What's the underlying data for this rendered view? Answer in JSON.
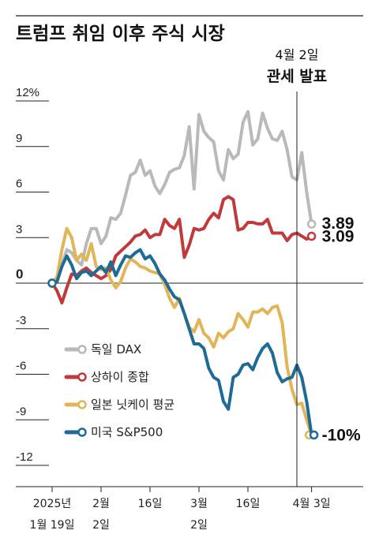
{
  "title": "트럼프 취임 이후 주식 시장",
  "annotation": {
    "line1": "4월 2일",
    "line2": "관세 발표"
  },
  "chart_data": {
    "type": "line",
    "title": "트럼프 취임 이후 주식 시장",
    "ylim": [
      -12,
      12
    ],
    "yticks": [
      "12%",
      "9",
      "6",
      "3",
      "0",
      "-3",
      "-6",
      "-9",
      "-12"
    ],
    "ytick_values": [
      12,
      9,
      6,
      3,
      0,
      -3,
      -6,
      -9,
      -12
    ],
    "xticks": [
      {
        "x": 0,
        "line1": "2025년",
        "line2": "1월 19일"
      },
      {
        "x": 10,
        "line1": "2월",
        "line2": "2일"
      },
      {
        "x": 20,
        "line1": "16일",
        "line2": ""
      },
      {
        "x": 30,
        "line1": "3월",
        "line2": "2일"
      },
      {
        "x": 40,
        "line1": "16일",
        "line2": ""
      },
      {
        "x": 53,
        "line1": "4월 3일",
        "line2": ""
      }
    ],
    "event_x": 50,
    "grid": false,
    "legend_position": "lower-left",
    "series": [
      {
        "name": "독일 DAX",
        "color": "#b9b9b9",
        "end_label": "3.89",
        "points": [
          [
            0,
            0
          ],
          [
            1,
            0.2
          ],
          [
            2,
            1.2
          ],
          [
            3,
            2.2
          ],
          [
            4,
            2.0
          ],
          [
            5,
            1.5
          ],
          [
            6,
            1.2
          ],
          [
            7,
            2.6
          ],
          [
            8,
            3.6
          ],
          [
            9,
            3.6
          ],
          [
            10,
            2.6
          ],
          [
            11,
            3.1
          ],
          [
            12,
            4.3
          ],
          [
            13,
            4.2
          ],
          [
            14,
            4.6
          ],
          [
            15,
            5.8
          ],
          [
            16,
            7.1
          ],
          [
            17,
            7.3
          ],
          [
            18,
            8.1
          ],
          [
            19,
            7.1
          ],
          [
            20,
            7.4
          ],
          [
            21,
            6.4
          ],
          [
            22,
            5.9
          ],
          [
            23,
            6.5
          ],
          [
            24,
            7.3
          ],
          [
            25,
            7.5
          ],
          [
            26,
            7.6
          ],
          [
            27,
            8.4
          ],
          [
            28,
            10.3
          ],
          [
            29,
            6.2
          ],
          [
            30,
            11.1
          ],
          [
            31,
            10.0
          ],
          [
            32,
            9.6
          ],
          [
            33,
            9.3
          ],
          [
            34,
            7.4
          ],
          [
            35,
            6.8
          ],
          [
            36,
            8.8
          ],
          [
            37,
            8.2
          ],
          [
            38,
            8.5
          ],
          [
            39,
            10.6
          ],
          [
            40,
            11.3
          ],
          [
            41,
            9.1
          ],
          [
            42,
            9.5
          ],
          [
            43,
            11.2
          ],
          [
            44,
            10.2
          ],
          [
            45,
            9.5
          ],
          [
            46,
            9.4
          ],
          [
            47,
            10.0
          ],
          [
            48,
            8.8
          ],
          [
            49,
            7.0
          ],
          [
            50,
            6.8
          ],
          [
            51,
            8.6
          ],
          [
            52,
            6.0
          ],
          [
            53,
            3.89
          ]
        ]
      },
      {
        "name": "상하이 종합",
        "color": "#c0393b",
        "end_label": "3.09",
        "points": [
          [
            0,
            0
          ],
          [
            1,
            -0.5
          ],
          [
            2,
            -1.3
          ],
          [
            3,
            -0.3
          ],
          [
            4,
            0.6
          ],
          [
            5,
            0.5
          ],
          [
            6,
            0.8
          ],
          [
            7,
            1.0
          ],
          [
            8,
            0.7
          ],
          [
            9,
            0.5
          ],
          [
            10,
            0.3
          ],
          [
            11,
            0.5
          ],
          [
            12,
            0.9
          ],
          [
            13,
            1.8
          ],
          [
            14,
            2.1
          ],
          [
            15,
            2.4
          ],
          [
            16,
            2.7
          ],
          [
            17,
            3.1
          ],
          [
            18,
            3.2
          ],
          [
            19,
            3.5
          ],
          [
            20,
            3.0
          ],
          [
            21,
            3.2
          ],
          [
            22,
            3.2
          ],
          [
            23,
            4.2
          ],
          [
            24,
            3.8
          ],
          [
            25,
            3.6
          ],
          [
            26,
            4.2
          ],
          [
            27,
            1.7
          ],
          [
            28,
            2.5
          ],
          [
            29,
            3.6
          ],
          [
            30,
            3.5
          ],
          [
            31,
            3.6
          ],
          [
            32,
            4.2
          ],
          [
            33,
            4.6
          ],
          [
            34,
            4.3
          ],
          [
            35,
            5.5
          ],
          [
            36,
            5.7
          ],
          [
            37,
            5.5
          ],
          [
            38,
            3.5
          ],
          [
            39,
            3.6
          ],
          [
            40,
            4.0
          ],
          [
            41,
            4.0
          ],
          [
            42,
            3.9
          ],
          [
            43,
            3.9
          ],
          [
            44,
            4.2
          ],
          [
            45,
            3.3
          ],
          [
            46,
            3.3
          ],
          [
            47,
            3.3
          ],
          [
            48,
            2.8
          ],
          [
            49,
            3.2
          ],
          [
            50,
            3.3
          ],
          [
            51,
            3.1
          ],
          [
            52,
            2.9
          ],
          [
            53,
            3.09
          ]
        ]
      },
      {
        "name": "일본 닛케이 평균",
        "color": "#e1b558",
        "end_label": "",
        "points": [
          [
            0,
            0
          ],
          [
            1,
            0.4
          ],
          [
            2,
            2.2
          ],
          [
            3,
            3.6
          ],
          [
            4,
            3.0
          ],
          [
            5,
            1.5
          ],
          [
            6,
            1.9
          ],
          [
            7,
            1.5
          ],
          [
            8,
            2.6
          ],
          [
            9,
            1.1
          ],
          [
            10,
            0.9
          ],
          [
            11,
            1.0
          ],
          [
            12,
            0.2
          ],
          [
            13,
            -0.3
          ],
          [
            14,
            0.1
          ],
          [
            15,
            1.0
          ],
          [
            16,
            1.6
          ],
          [
            17,
            1.4
          ],
          [
            18,
            1.1
          ],
          [
            19,
            1.0
          ],
          [
            20,
            0.8
          ],
          [
            21,
            0.7
          ],
          [
            22,
            0.6
          ],
          [
            23,
            -0.1
          ],
          [
            24,
            -1.0
          ],
          [
            25,
            -1.6
          ],
          [
            26,
            -1.0
          ],
          [
            27,
            -2.0
          ],
          [
            28,
            -2.9
          ],
          [
            29,
            -3.2
          ],
          [
            30,
            -2.4
          ],
          [
            31,
            -3.3
          ],
          [
            32,
            -3.6
          ],
          [
            33,
            -4.2
          ],
          [
            34,
            -3.3
          ],
          [
            35,
            -3.6
          ],
          [
            36,
            -3.2
          ],
          [
            37,
            -3.0
          ],
          [
            38,
            -2.0
          ],
          [
            39,
            -2.4
          ],
          [
            40,
            -2.9
          ],
          [
            41,
            -1.9
          ],
          [
            42,
            -1.9
          ],
          [
            43,
            -1.7
          ],
          [
            44,
            -2.0
          ],
          [
            45,
            -1.6
          ],
          [
            46,
            -1.5
          ],
          [
            47,
            -2.6
          ],
          [
            48,
            -5.5
          ],
          [
            49,
            -7.0
          ],
          [
            50,
            -8.0
          ],
          [
            51,
            -7.9
          ],
          [
            52,
            -9.0
          ],
          [
            53,
            -10.0
          ]
        ]
      },
      {
        "name": "미국 S&P500",
        "color": "#1f6b97",
        "end_label": "-10%",
        "points": [
          [
            0,
            0
          ],
          [
            1,
            0.1
          ],
          [
            2,
            1.1
          ],
          [
            3,
            1.8
          ],
          [
            4,
            1.2
          ],
          [
            5,
            0.3
          ],
          [
            6,
            0.7
          ],
          [
            7,
            0.8
          ],
          [
            8,
            0.5
          ],
          [
            9,
            0.8
          ],
          [
            10,
            1.1
          ],
          [
            11,
            0.7
          ],
          [
            12,
            1.4
          ],
          [
            13,
            0.5
          ],
          [
            14,
            1.2
          ],
          [
            15,
            1.8
          ],
          [
            16,
            1.7
          ],
          [
            17,
            2.0
          ],
          [
            18,
            2.2
          ],
          [
            19,
            1.6
          ],
          [
            20,
            1.8
          ],
          [
            21,
            1.3
          ],
          [
            22,
            0.6
          ],
          [
            23,
            0.2
          ],
          [
            24,
            -0.4
          ],
          [
            25,
            -0.9
          ],
          [
            26,
            -1.1
          ],
          [
            27,
            -2.0
          ],
          [
            28,
            -3.0
          ],
          [
            29,
            -4.0
          ],
          [
            30,
            -4.0
          ],
          [
            31,
            -4.3
          ],
          [
            32,
            -5.6
          ],
          [
            33,
            -6.2
          ],
          [
            34,
            -6.4
          ],
          [
            35,
            -7.8
          ],
          [
            36,
            -8.3
          ],
          [
            37,
            -6.2
          ],
          [
            38,
            -6.0
          ],
          [
            39,
            -5.4
          ],
          [
            40,
            -5.3
          ],
          [
            41,
            -5.7
          ],
          [
            42,
            -4.9
          ],
          [
            43,
            -4.3
          ],
          [
            44,
            -4.0
          ],
          [
            45,
            -4.6
          ],
          [
            46,
            -5.9
          ],
          [
            47,
            -6.5
          ],
          [
            48,
            -6.3
          ],
          [
            49,
            -6.2
          ],
          [
            50,
            -5.4
          ],
          [
            51,
            -6.2
          ],
          [
            52,
            -7.8
          ],
          [
            53,
            -10.0
          ]
        ]
      }
    ]
  }
}
